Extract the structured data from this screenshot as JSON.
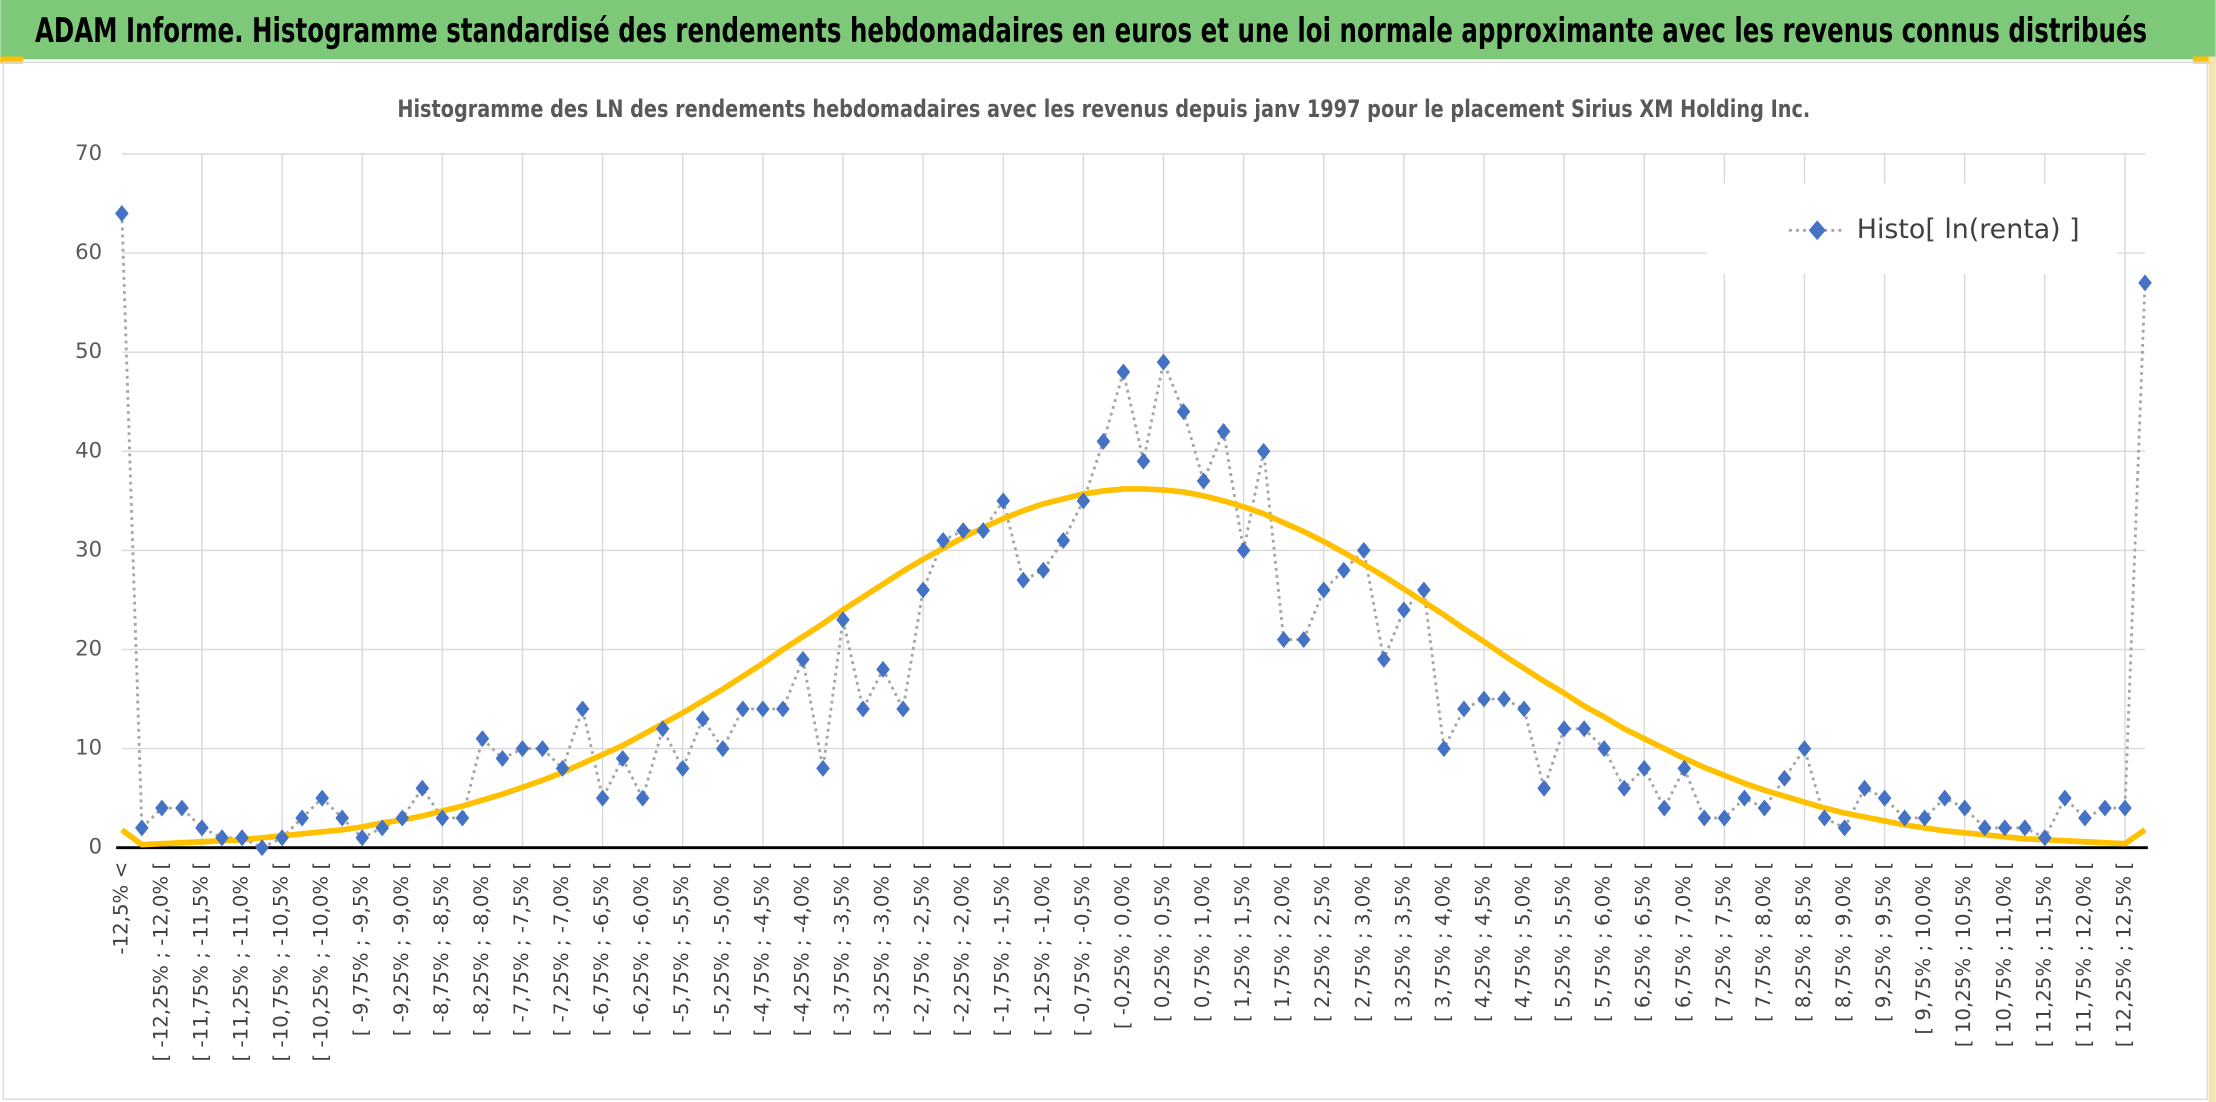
{
  "chart_data": {
    "type": "line",
    "header": "ADAM Informe. Histogramme standardisé des rendements hebdomadaires en euros et une loi normale approximante avec les revenus connus distribués",
    "title": "Histogramme des LN des rendements hebdomadaires avec les revenus depuis janv 1997 pour le placement Sirius XM Holding Inc.",
    "categories": [
      "-12,5% <",
      null,
      "[ -12,25% ; -12,0% [",
      null,
      "[ -11,75% ; -11,5% [",
      null,
      "[ -11,25% ; -11,0% [",
      null,
      "[ -10,75% ; -10,5% [",
      null,
      "[ -10,25% ; -10,0% [",
      null,
      "[ -9,75% ; -9,5% [",
      null,
      "[ -9,25% ; -9,0% [",
      null,
      "[ -8,75% ; -8,5% [",
      null,
      "[ -8,25% ; -8,0% [",
      null,
      "[ -7,75% ; -7,5% [",
      null,
      "[ -7,25% ; -7,0% [",
      null,
      "[ -6,75% ; -6,5% [",
      null,
      "[ -6,25% ; -6,0% [",
      null,
      "[ -5,75% ; -5,5% [",
      null,
      "[ -5,25% ; -5,0% [",
      null,
      "[ -4,75% ; -4,5% [",
      null,
      "[ -4,25% ; -4,0% [",
      null,
      "[ -3,75% ; -3,5% [",
      null,
      "[ -3,25% ; -3,0% [",
      null,
      "[ -2,75% ; -2,5% [",
      null,
      "[ -2,25% ; -2,0% [",
      null,
      "[ -1,75% ; -1,5% [",
      null,
      "[ -1,25% ; -1,0% [",
      null,
      "[ -0,75% ; -0,5% [",
      null,
      "[ -0,25% ; 0,0% [",
      null,
      "[ 0,25% ; 0,5% [",
      null,
      "[ 0,75% ; 1,0% [",
      null,
      "[ 1,25% ; 1,5% [",
      null,
      "[ 1,75% ; 2,0% [",
      null,
      "[ 2,25% ; 2,5% [",
      null,
      "[ 2,75% ; 3,0% [",
      null,
      "[ 3,25% ; 3,5% [",
      null,
      "[ 3,75% ; 4,0% [",
      null,
      "[ 4,25% ; 4,5% [",
      null,
      "[ 4,75% ; 5,0% [",
      null,
      "[ 5,25% ; 5,5% [",
      null,
      "[ 5,75% ; 6,0% [",
      null,
      "[ 6,25% ; 6,5% [",
      null,
      "[ 6,75% ; 7,0% [",
      null,
      "[ 7,25% ; 7,5% [",
      null,
      "[ 7,75% ; 8,0% [",
      null,
      "[ 8,25% ; 8,5% [",
      null,
      "[ 8,75% ; 9,0% [",
      null,
      "[ 9,25% ; 9,5% [",
      null,
      "[ 9,75% ; 10,0% [",
      null,
      "[ 10,25% ; 10,5% [",
      null,
      "[ 10,75% ; 11,0% [",
      null,
      "[ 11,25% ; 11,5% [",
      null,
      "[ 11,75% ; 12,0% [",
      null,
      "[ 12,25% ; 12,5% [",
      null
    ],
    "series": [
      {
        "name": "Histo[ ln(renta) ]",
        "color": "#4472c4",
        "line_color": "#a5a5a5",
        "line_style": "dotted",
        "marker": "diamond",
        "values": [
          64,
          2,
          4,
          4,
          2,
          1,
          1,
          0,
          1,
          3,
          5,
          3,
          1,
          2,
          3,
          6,
          3,
          3,
          11,
          9,
          10,
          10,
          8,
          14,
          5,
          9,
          5,
          12,
          8,
          13,
          10,
          14,
          14,
          14,
          19,
          8,
          23,
          14,
          18,
          14,
          26,
          31,
          32,
          32,
          35,
          27,
          28,
          31,
          35,
          41,
          48,
          39,
          49,
          44,
          37,
          42,
          30,
          40,
          21,
          21,
          26,
          28,
          30,
          19,
          24,
          26,
          10,
          14,
          15,
          15,
          14,
          6,
          12,
          12,
          10,
          6,
          8,
          4,
          8,
          3,
          3,
          5,
          4,
          7,
          10,
          3,
          2,
          6,
          5,
          3,
          3,
          5,
          4,
          2,
          2,
          2,
          1,
          5,
          3,
          4,
          4,
          57
        ]
      },
      {
        "color": "#ffc000",
        "line_style": "solid",
        "marker": "none",
        "values": [
          1.8,
          0.3,
          0.4,
          0.5,
          0.6,
          0.7,
          0.8,
          1.0,
          1.2,
          1.4,
          1.6,
          1.8,
          2.1,
          2.5,
          2.8,
          3.2,
          3.7,
          4.2,
          4.8,
          5.4,
          6.1,
          6.8,
          7.6,
          8.5,
          9.4,
          10.3,
          11.4,
          12.5,
          13.6,
          14.8,
          16.0,
          17.3,
          18.6,
          20.0,
          21.3,
          22.6,
          24.0,
          25.3,
          26.6,
          27.9,
          29.1,
          30.2,
          31.3,
          32.3,
          33.2,
          34.0,
          34.7,
          35.2,
          35.7,
          36.0,
          36.2,
          36.2,
          36.1,
          35.9,
          35.5,
          35.0,
          34.4,
          33.7,
          32.8,
          31.9,
          30.9,
          29.8,
          28.6,
          27.4,
          26.1,
          24.8,
          23.5,
          22.1,
          20.8,
          19.4,
          18.1,
          16.8,
          15.6,
          14.3,
          13.2,
          12.0,
          11.0,
          10.0,
          9.0,
          8.1,
          7.3,
          6.5,
          5.8,
          5.2,
          4.6,
          4.0,
          3.5,
          3.1,
          2.7,
          2.3,
          2.0,
          1.7,
          1.5,
          1.3,
          1.1,
          0.9,
          0.8,
          0.7,
          0.6,
          0.5,
          0.4,
          1.8
        ]
      }
    ],
    "ylim": [
      0,
      70
    ],
    "yticks": [
      0,
      10,
      20,
      30,
      40,
      50,
      60,
      70
    ],
    "grid": true,
    "legend": "upper right"
  }
}
